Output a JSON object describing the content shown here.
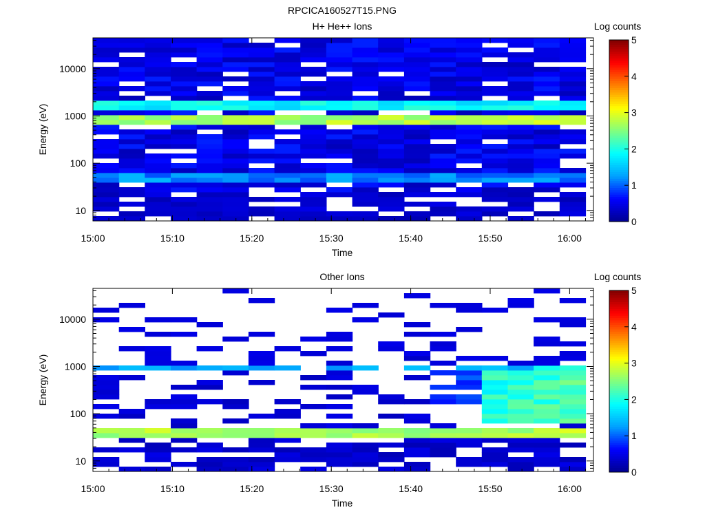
{
  "figure_title": "RPCICA160527T15.PNG",
  "colors": {
    "empty_bin": "#ffffff",
    "colormap": [
      "#00008f",
      "#0000ff",
      "#00a0ff",
      "#00ffff",
      "#80ff80",
      "#ffff00",
      "#ff8000",
      "#ff0000",
      "#800000"
    ]
  },
  "chart_data": [
    {
      "type": "heatmap",
      "title": "H+ He++ Ions",
      "xlabel": "Time",
      "ylabel": "Energy (eV)",
      "xlim": [
        "15:00",
        "16:03"
      ],
      "ylim": [
        6,
        45000
      ],
      "yscale": "log",
      "x_ticks": [
        "15:00",
        "15:10",
        "15:20",
        "15:30",
        "15:40",
        "15:50",
        "16:00"
      ],
      "y_ticks": [
        "10",
        "100",
        "1000",
        "10000"
      ],
      "colorbar": {
        "label": "Log counts",
        "range": [
          0,
          5
        ],
        "ticks": [
          "0",
          "1",
          "2",
          "3",
          "4",
          "5"
        ]
      },
      "time_bins": 19,
      "energy_bins": 38,
      "features": [
        {
          "description": "intense band",
          "energy_range_eV": [
            700,
            1100
          ],
          "log_counts": 2.8
        },
        {
          "description": "secondary band",
          "energy_range_eV": [
            1300,
            2000
          ],
          "log_counts": 1.9
        },
        {
          "description": "weak band",
          "energy_range_eV": [
            40,
            60
          ],
          "log_counts": 1.2
        },
        {
          "description": "background",
          "energy_range_eV": [
            6,
            45000
          ],
          "log_counts": 0.4
        }
      ]
    },
    {
      "type": "heatmap",
      "title": "Other Ions",
      "xlabel": "Time",
      "ylabel": "Energy (eV)",
      "xlim": [
        "15:00",
        "16:03"
      ],
      "ylim": [
        6,
        45000
      ],
      "yscale": "log",
      "x_ticks": [
        "15:00",
        "15:10",
        "15:20",
        "15:30",
        "15:40",
        "15:50",
        "16:00"
      ],
      "y_ticks": [
        "10",
        "100",
        "1000",
        "10000"
      ],
      "colorbar": {
        "label": "Log counts",
        "range": [
          0,
          5
        ],
        "ticks": [
          "0",
          "1",
          "2",
          "3",
          "4",
          "5"
        ]
      },
      "time_bins": 19,
      "energy_bins": 38,
      "features": [
        {
          "description": "intense band",
          "energy_range_eV": [
            30,
            50
          ],
          "log_counts": 2.8
        },
        {
          "description": "band",
          "energy_range_eV": [
            800,
            1000
          ],
          "log_counts": 1.3
        },
        {
          "description": "enhancement after 15:50",
          "energy_range_eV": [
            70,
            1000
          ],
          "log_counts": 1.8
        },
        {
          "description": "sparse background",
          "energy_range_eV": [
            6,
            45000
          ],
          "log_counts": 0.2
        }
      ]
    }
  ]
}
